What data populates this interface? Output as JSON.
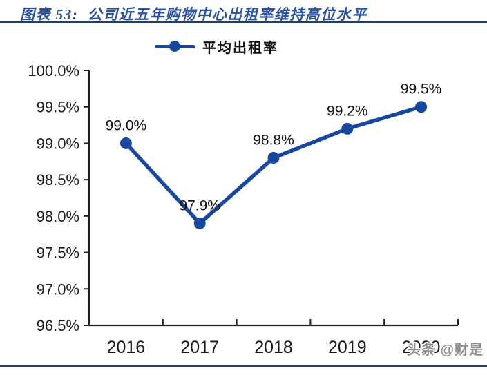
{
  "figure": {
    "title": "图表 53:  公司近五年购物中心出租率维持高位水平",
    "watermark": "头条 @财是"
  },
  "colors": {
    "accent_blue": "#17479E",
    "title_blue": "#2A52A2",
    "rule_navy": "#1D3E70",
    "axis_black": "#1f1f1f",
    "watermark_gray": "#8F8F8F"
  },
  "chart_data": {
    "type": "line",
    "title": "",
    "legend": [
      "平均出租率"
    ],
    "legend_position": "top-center",
    "categories": [
      "2016",
      "2017",
      "2018",
      "2019",
      "2020"
    ],
    "series": [
      {
        "name": "平均出租率",
        "values": [
          99.0,
          97.9,
          98.8,
          99.2,
          99.5
        ]
      }
    ],
    "data_labels": [
      "99.0%",
      "97.9%",
      "98.8%",
      "99.2%",
      "99.5%"
    ],
    "ylim": [
      96.5,
      100.0
    ],
    "ytick_step": 0.5,
    "ytick_labels": [
      "96.5%",
      "97.0%",
      "97.5%",
      "98.0%",
      "98.5%",
      "99.0%",
      "99.5%",
      "100.0%"
    ],
    "grid": false
  }
}
